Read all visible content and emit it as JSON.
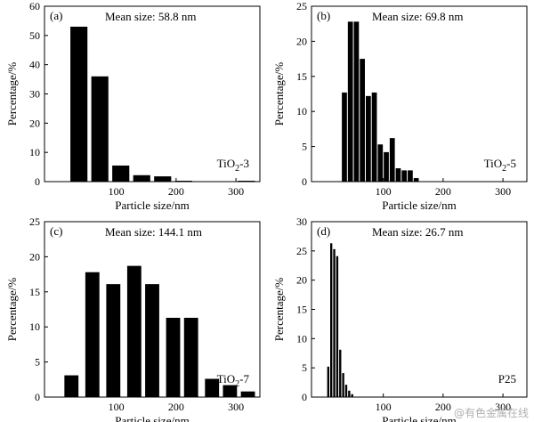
{
  "chart_data": [
    {
      "type": "bar",
      "panel_label": "(a)",
      "annotation": "Mean size: 58.8 nm",
      "sample_label": "TiO₂-3",
      "xlabel": "Particle size/nm",
      "ylabel": "Percentage/%",
      "xlim": [
        -20,
        340
      ],
      "ylim": [
        0,
        60
      ],
      "xticks": [
        100,
        200,
        300
      ],
      "yticks": [
        0,
        10,
        20,
        30,
        40,
        50,
        60
      ],
      "bin_width": 30,
      "bars": [
        {
          "x": 37.5,
          "value": 53
        },
        {
          "x": 72.5,
          "value": 36
        },
        {
          "x": 107.5,
          "value": 5.5
        },
        {
          "x": 142.5,
          "value": 2.2
        },
        {
          "x": 177.5,
          "value": 1.8
        },
        {
          "x": 212.5,
          "value": 0.3
        },
        {
          "x": 317.5,
          "value": 0.3
        }
      ]
    },
    {
      "type": "bar",
      "panel_label": "(b)",
      "annotation": "Mean size: 69.8 nm",
      "sample_label": "TiO₂-5",
      "xlabel": "Particle size/nm",
      "ylabel": "Percentage/%",
      "xlim": [
        -20,
        340
      ],
      "ylim": [
        0,
        25
      ],
      "xticks": [
        100,
        200,
        300
      ],
      "yticks": [
        0,
        5,
        10,
        15,
        20,
        25
      ],
      "bin_width": 10,
      "bars": [
        {
          "x": 35,
          "value": 12.7
        },
        {
          "x": 45,
          "value": 22.8
        },
        {
          "x": 55,
          "value": 22.8
        },
        {
          "x": 65,
          "value": 17.5
        },
        {
          "x": 75,
          "value": 12.2
        },
        {
          "x": 85,
          "value": 12.7
        },
        {
          "x": 95,
          "value": 5.3
        },
        {
          "x": 105,
          "value": 4.2
        },
        {
          "x": 115,
          "value": 6.2
        },
        {
          "x": 125,
          "value": 1.9
        },
        {
          "x": 135,
          "value": 1.6
        },
        {
          "x": 145,
          "value": 1.6
        },
        {
          "x": 155,
          "value": 0.5
        }
      ]
    },
    {
      "type": "bar",
      "panel_label": "(c)",
      "annotation": "Mean size: 144.1 nm",
      "sample_label": "TiO₂-7",
      "xlabel": "Particle size/nm",
      "ylabel": "Percentage/%",
      "xlim": [
        -20,
        340
      ],
      "ylim": [
        0,
        25
      ],
      "xticks": [
        100,
        200,
        300
      ],
      "yticks": [
        0,
        5,
        10,
        15,
        20,
        25
      ],
      "bin_width": 25,
      "bars": [
        {
          "x": 25,
          "value": 3.1
        },
        {
          "x": 60,
          "value": 17.8
        },
        {
          "x": 95,
          "value": 16.1
        },
        {
          "x": 130,
          "value": 18.7
        },
        {
          "x": 160,
          "value": 16.1
        },
        {
          "x": 195,
          "value": 11.3
        },
        {
          "x": 225,
          "value": 11.3
        },
        {
          "x": 260,
          "value": 2.6
        },
        {
          "x": 290,
          "value": 1.7
        },
        {
          "x": 320,
          "value": 0.8
        }
      ]
    },
    {
      "type": "bar",
      "panel_label": "(d)",
      "annotation": "Mean size: 26.7 nm",
      "sample_label": "P25",
      "xlabel": "Particle size/nm",
      "ylabel": "Percentage/%",
      "xlim": [
        -20,
        340
      ],
      "ylim": [
        0,
        30
      ],
      "xticks": [
        100,
        200,
        300
      ],
      "yticks": [
        0,
        5,
        10,
        15,
        20,
        25,
        30
      ],
      "bin_width": 5,
      "bars": [
        {
          "x": 8,
          "value": 5.2
        },
        {
          "x": 13,
          "value": 26.3
        },
        {
          "x": 18,
          "value": 25.3
        },
        {
          "x": 23,
          "value": 24.1
        },
        {
          "x": 28,
          "value": 8.1
        },
        {
          "x": 33,
          "value": 4.1
        },
        {
          "x": 38,
          "value": 2.1
        },
        {
          "x": 43,
          "value": 1.1
        },
        {
          "x": 48,
          "value": 0.5
        }
      ]
    }
  ],
  "watermark": "@有色金属在线"
}
